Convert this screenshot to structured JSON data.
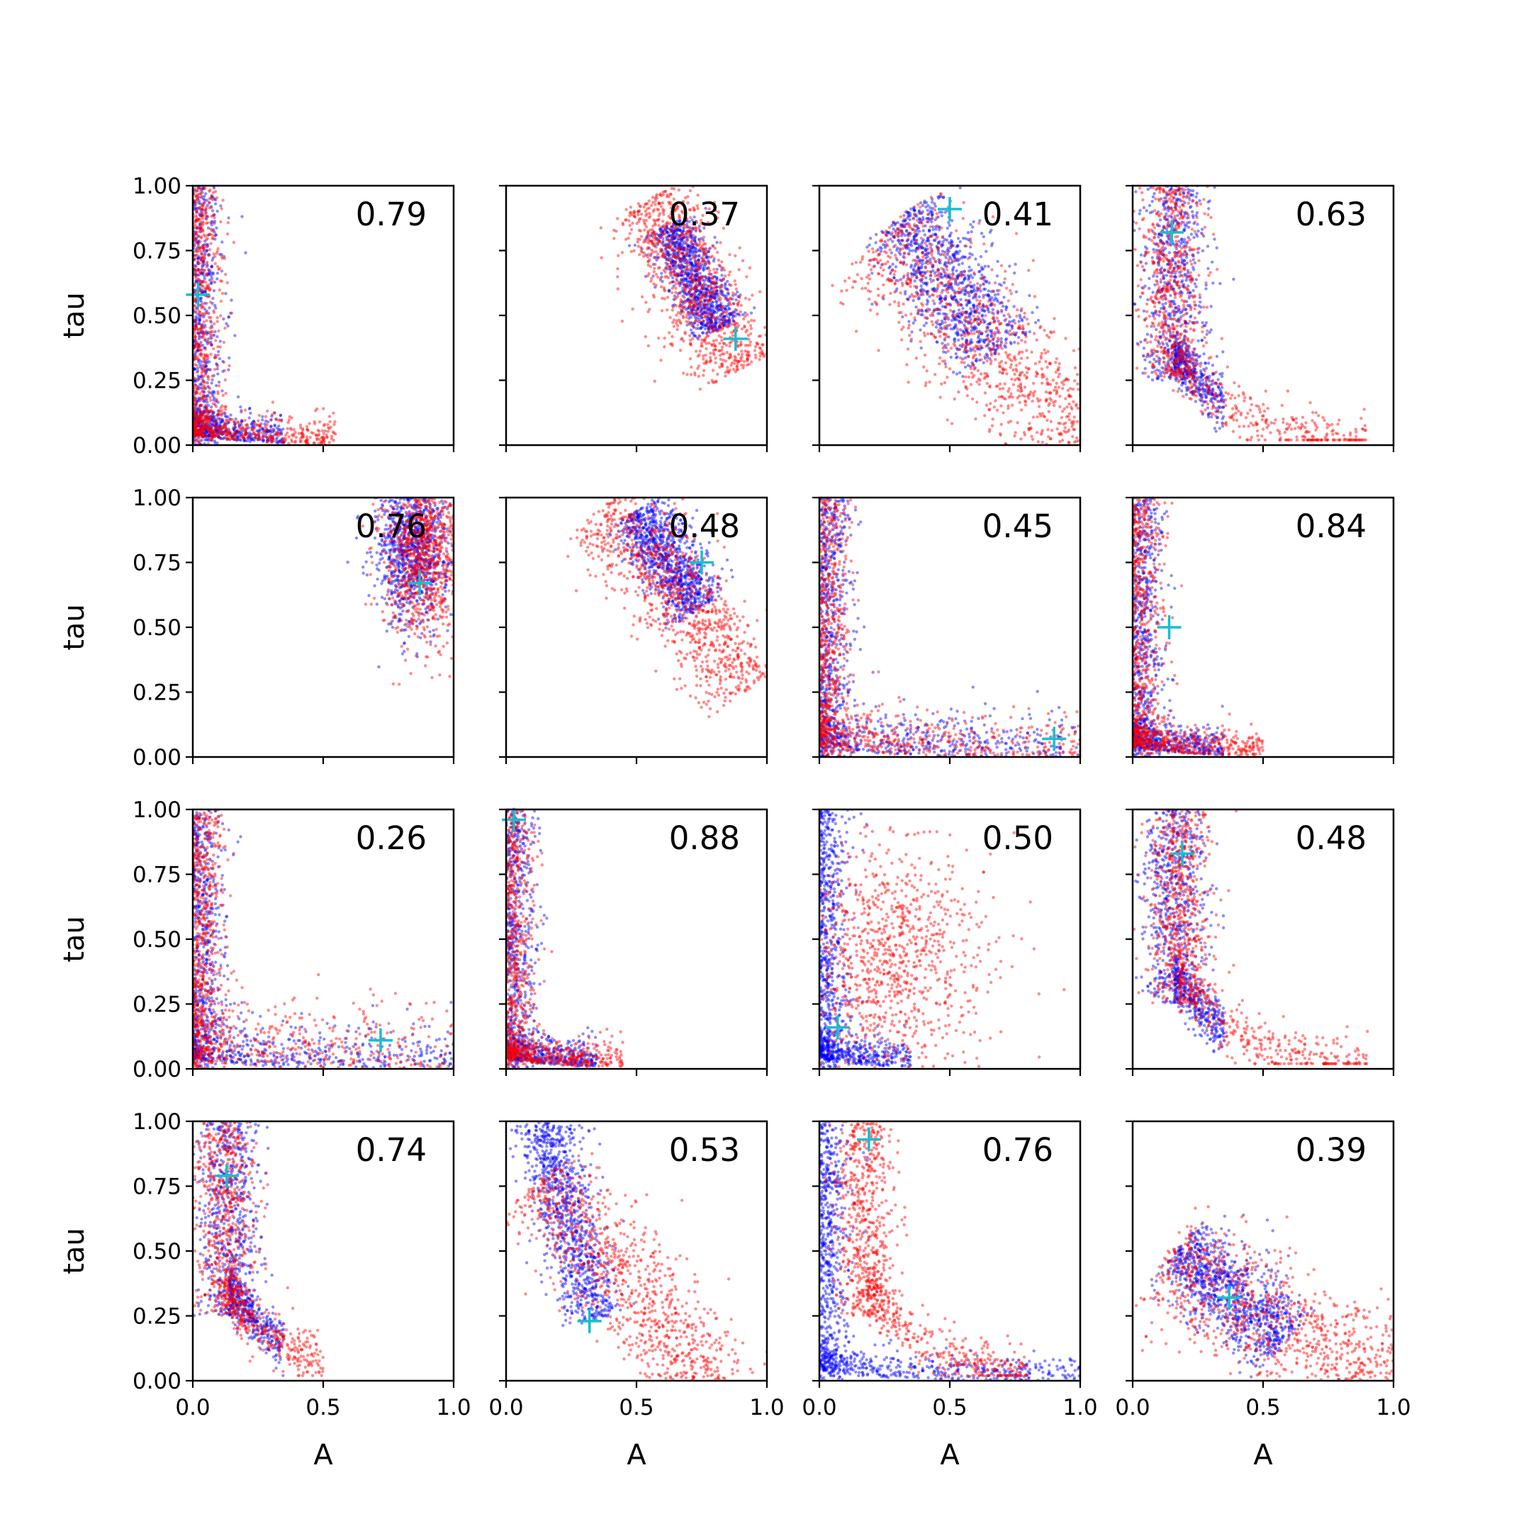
{
  "figure": {
    "xlabel": "A",
    "ylabel": "tau",
    "x_ticks": [
      "0.0",
      "0.5",
      "1.0"
    ],
    "y_ticks": [
      "0.00",
      "0.25",
      "0.50",
      "0.75",
      "1.00"
    ]
  },
  "colors": {
    "series_blue": "#0000ff",
    "series_red": "#ff0000",
    "marker": "#17becf",
    "frame": "#000000"
  },
  "chart_data": {
    "type": "scatter",
    "grid": false,
    "legend": "none",
    "xlim": [
      0,
      1
    ],
    "ylim": [
      0,
      1
    ],
    "layout": "4x4 grid of panels",
    "series_colors": [
      "blue",
      "red"
    ],
    "points_per_series_approx": 1000,
    "panels": [
      {
        "value": "0.79",
        "cross": [
          0.02,
          0.58
        ],
        "blue": {
          "shape": "L",
          "tail": "x"
        },
        "red": {
          "shape": "L",
          "tail": "x",
          "reach_x": 0.55
        }
      },
      {
        "value": "0.37",
        "cross": [
          0.88,
          0.41
        ],
        "blue": {
          "shape": "band",
          "center": [
            0.72,
            0.65
          ],
          "slope": -2.0,
          "length": 0.45,
          "width": 0.05
        },
        "red": {
          "shape": "band",
          "center": [
            0.72,
            0.62
          ],
          "slope": -2.0,
          "length": 0.75,
          "width": 0.09
        }
      },
      {
        "value": "0.41",
        "cross": [
          0.5,
          0.91
        ],
        "blue": {
          "shape": "band",
          "center": [
            0.5,
            0.62
          ],
          "slope": -1.5,
          "length": 0.65,
          "width": 0.09
        },
        "red": {
          "shape": "band",
          "center": [
            0.62,
            0.42
          ],
          "slope": -1.0,
          "length": 1.1,
          "width": 0.12
        }
      },
      {
        "value": "0.63",
        "cross": [
          0.15,
          0.82
        ],
        "blue": {
          "shape": "L",
          "tail": "y",
          "x0": 0.16
        },
        "red": {
          "shape": "L",
          "tail": "y",
          "x0": 0.15,
          "reach_x": 0.9
        }
      },
      {
        "value": "0.76",
        "cross": [
          0.87,
          0.67
        ],
        "blue": {
          "shape": "blob",
          "center": [
            0.84,
            0.8
          ],
          "spread": [
            0.07,
            0.14
          ]
        },
        "red": {
          "shape": "blob",
          "center": [
            0.88,
            0.78
          ],
          "spread": [
            0.08,
            0.17
          ]
        }
      },
      {
        "value": "0.48",
        "cross": [
          0.75,
          0.75
        ],
        "blue": {
          "shape": "band",
          "center": [
            0.62,
            0.76
          ],
          "slope": -1.5,
          "length": 0.45,
          "width": 0.06
        },
        "red": {
          "shape": "band",
          "center": [
            0.66,
            0.62
          ],
          "slope": -1.3,
          "length": 0.9,
          "width": 0.09
        }
      },
      {
        "value": "0.45",
        "cross": [
          0.9,
          0.07
        ],
        "blue": {
          "shape": "L",
          "tail": "x",
          "y0": 0.08,
          "reach_x": 1.0
        },
        "red": {
          "shape": "L",
          "tail": "x",
          "y0": 0.08,
          "reach_x": 1.0
        }
      },
      {
        "value": "0.84",
        "cross": [
          0.14,
          0.5
        ],
        "blue": {
          "shape": "L",
          "tail": "x"
        },
        "red": {
          "shape": "L",
          "tail": "x",
          "reach_x": 0.5
        }
      },
      {
        "value": "0.26",
        "cross": [
          0.72,
          0.11
        ],
        "blue": {
          "shape": "L",
          "tail": "x",
          "y0": 0.08,
          "reach_x": 1.0
        },
        "red": {
          "shape": "L",
          "tail": "x",
          "y0": 0.12,
          "reach_x": 1.0
        }
      },
      {
        "value": "0.88",
        "cross": [
          0.03,
          0.96
        ],
        "blue": {
          "shape": "L",
          "tail": "x"
        },
        "red": {
          "shape": "L",
          "tail": "x",
          "reach_x": 0.45
        }
      },
      {
        "value": "0.50",
        "cross": [
          0.07,
          0.16
        ],
        "blue": {
          "shape": "L",
          "tail": "x"
        },
        "red": {
          "shape": "blob",
          "center": [
            0.28,
            0.42
          ],
          "spread": [
            0.18,
            0.22
          ]
        }
      },
      {
        "value": "0.48",
        "cross": [
          0.19,
          0.83
        ],
        "blue": {
          "shape": "L",
          "tail": "y",
          "x0": 0.16
        },
        "red": {
          "shape": "L",
          "tail": "y",
          "x0": 0.18,
          "reach_x": 0.9
        }
      },
      {
        "value": "0.74",
        "cross": [
          0.13,
          0.79
        ],
        "blue": {
          "shape": "L",
          "tail": "y",
          "x0": 0.14
        },
        "red": {
          "shape": "L",
          "tail": "y",
          "x0": 0.12,
          "reach_x": 0.5
        }
      },
      {
        "value": "0.53",
        "cross": [
          0.32,
          0.23
        ],
        "blue": {
          "shape": "band",
          "center": [
            0.24,
            0.62
          ],
          "slope": -4.0,
          "length": 0.8,
          "width": 0.06
        },
        "red": {
          "shape": "band",
          "center": [
            0.48,
            0.35
          ],
          "slope": -1.2,
          "length": 1.1,
          "width": 0.1
        }
      },
      {
        "value": "0.76",
        "cross": [
          0.19,
          0.93
        ],
        "blue": {
          "shape": "L",
          "tail": "x",
          "reach_x": 1.0
        },
        "red": {
          "shape": "L",
          "tail": "y",
          "x0": 0.18,
          "reach_x": 0.8
        }
      },
      {
        "value": "0.39",
        "cross": [
          0.37,
          0.32
        ],
        "blue": {
          "shape": "band",
          "center": [
            0.38,
            0.33
          ],
          "slope": -0.9,
          "length": 0.55,
          "width": 0.08
        },
        "red": {
          "shape": "band",
          "center": [
            0.55,
            0.22
          ],
          "slope": -0.6,
          "length": 1.0,
          "width": 0.12
        }
      }
    ]
  }
}
